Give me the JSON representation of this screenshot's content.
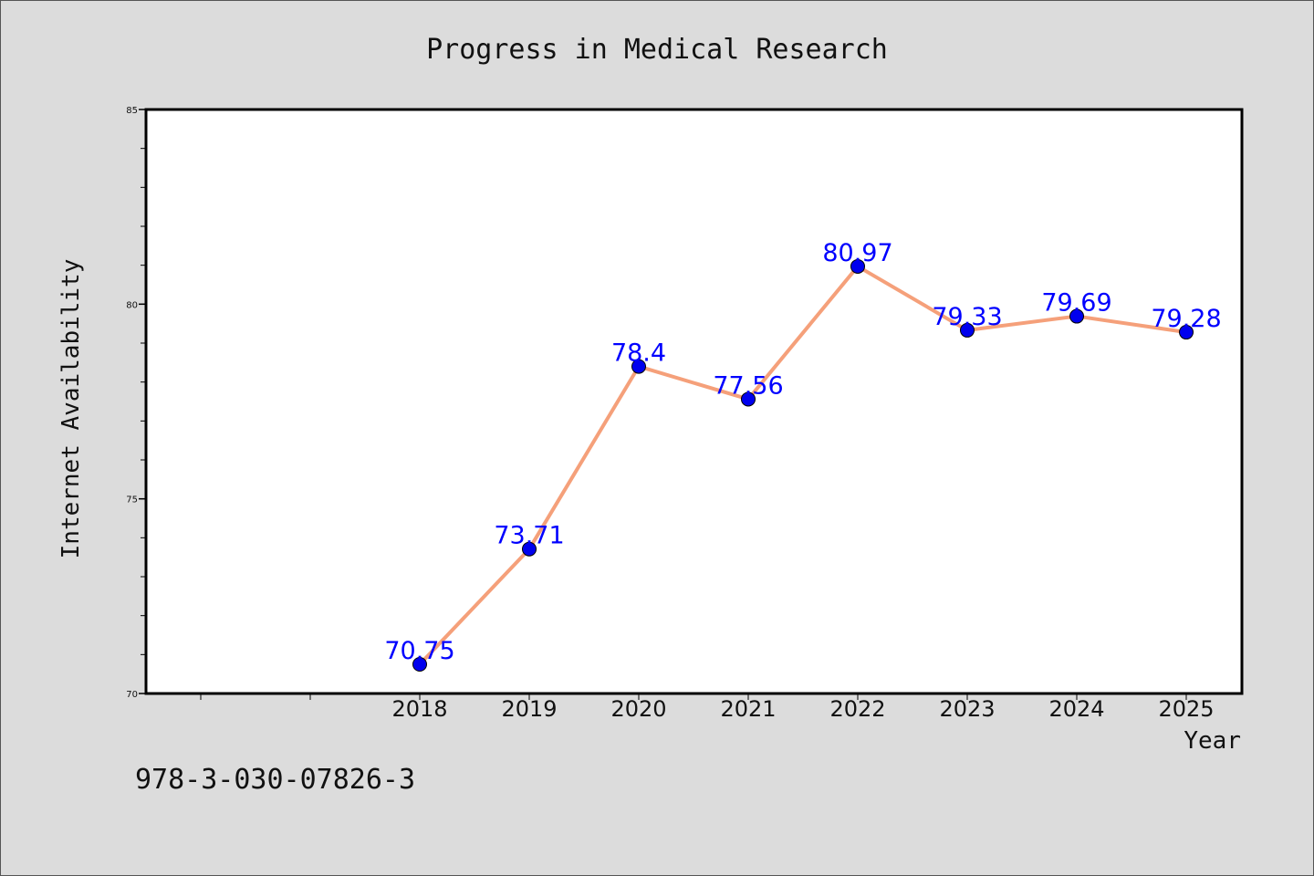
{
  "chart_data": {
    "type": "line",
    "title": "Progress in Medical Research",
    "xlabel": "Year",
    "ylabel": "Internet Availability",
    "categories": [
      "2018",
      "2019",
      "2020",
      "2021",
      "2022",
      "2023",
      "2024",
      "2025"
    ],
    "series": [
      {
        "values": [
          70.75,
          73.71,
          78.4,
          77.56,
          80.97,
          79.33,
          79.69,
          79.28
        ]
      }
    ],
    "data_labels": [
      "70.75",
      "73.71",
      "78.4",
      "77.56",
      "80.97",
      "79.33",
      "79.69",
      "79.28"
    ],
    "ylim": [
      70,
      85
    ],
    "yticks": [
      70,
      75,
      80,
      85
    ],
    "ytick_labels": [
      "70",
      "75",
      "80",
      "85"
    ],
    "grid": false,
    "line_color": "#f5a07a",
    "marker_color": "#0000ee",
    "label_color": "#0000ff"
  },
  "footnote": "978-3-030-07826-3"
}
